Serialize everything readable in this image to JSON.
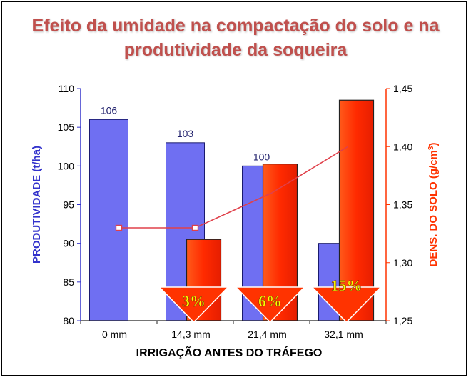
{
  "title_line1": "Efeito da umidade na compactação do solo e na",
  "title_line2": "produtividade da soqueira",
  "colors": {
    "title": "#c0504d",
    "blue_bar": "#6f6ff2",
    "blue_axis": "#3333cc",
    "red": "#ff3300",
    "density_line": "#e0404a"
  },
  "chart_data": {
    "type": "bar",
    "categories": [
      "0 mm",
      "14,3 mm",
      "21,4 mm",
      "32,1 mm"
    ],
    "xlabel": "IRRIGAÇÃO ANTES DO TRÁFEGO",
    "ylabel": "PRODUTIVIDADE (t/ha)",
    "ylim": [
      80,
      110
    ],
    "yticks": [
      "80",
      "85",
      "90",
      "95",
      "100",
      "105",
      "110"
    ],
    "y2label": "DENS. DO SOLO (g/cm",
    "y2label_sup": "3",
    "y2label_close": ")",
    "y2lim": [
      1.25,
      1.45
    ],
    "y2ticks": [
      "1,25",
      "1,30",
      "1,35",
      "1,40",
      "1,45"
    ],
    "series": [
      {
        "axis": "left",
        "kind": "bar",
        "values": [
          106,
          103,
          100,
          90
        ],
        "labels": [
          "106",
          "103",
          "100",
          ""
        ]
      },
      {
        "axis": "right",
        "kind": "line",
        "values": [
          1.33,
          1.33,
          1.36,
          1.4
        ],
        "markers": [
          true,
          true,
          false,
          false
        ]
      },
      {
        "axis": "right",
        "kind": "bar",
        "values": [
          null,
          1.32,
          1.385,
          1.44
        ]
      }
    ],
    "annotations": [
      "3%",
      "6%",
      "15%"
    ],
    "grid": false
  }
}
